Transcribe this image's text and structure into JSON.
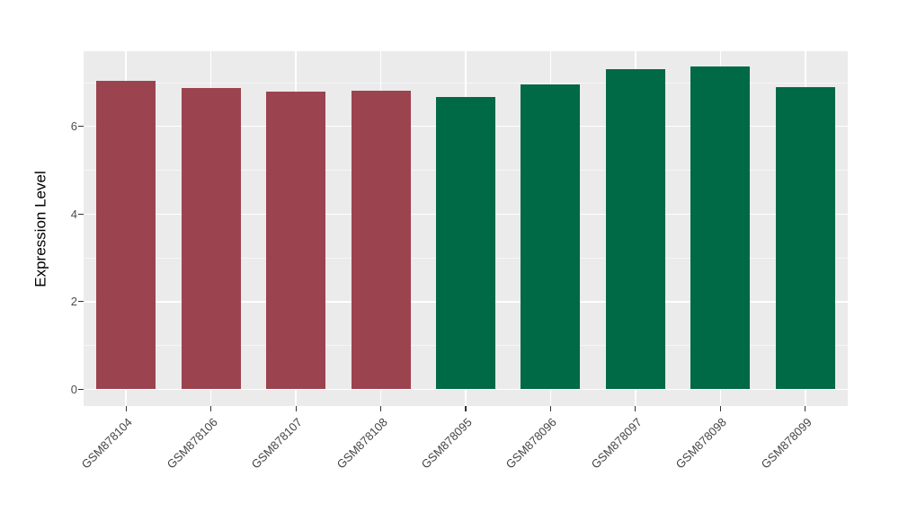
{
  "chart_data": {
    "type": "bar",
    "title": "",
    "ylabel": "Expression Level",
    "xlabel": "",
    "categories": [
      "GSM878104",
      "GSM878106",
      "GSM878107",
      "GSM878108",
      "GSM878095",
      "GSM878096",
      "GSM878097",
      "GSM878098",
      "GSM878099"
    ],
    "values": [
      7.04,
      6.88,
      6.8,
      6.82,
      6.67,
      6.95,
      7.3,
      7.37,
      6.9
    ],
    "bar_colors": [
      "#9C4350",
      "#9C4350",
      "#9C4350",
      "#9C4350",
      "#006946",
      "#006946",
      "#006946",
      "#006946",
      "#006946"
    ],
    "yticks": [
      0,
      2,
      4,
      6
    ],
    "yticks_minor": [
      1,
      3,
      5,
      7
    ],
    "ylim": [
      0,
      7.74
    ],
    "grid": "on",
    "legend": "none",
    "panel_bg": "#EBEBEB",
    "grid_major_color": "#FFFFFF",
    "grid_minor_color": "#F6F6F6",
    "axis_text_color": "#4D4D4D",
    "axis_title_color": "#000000"
  }
}
